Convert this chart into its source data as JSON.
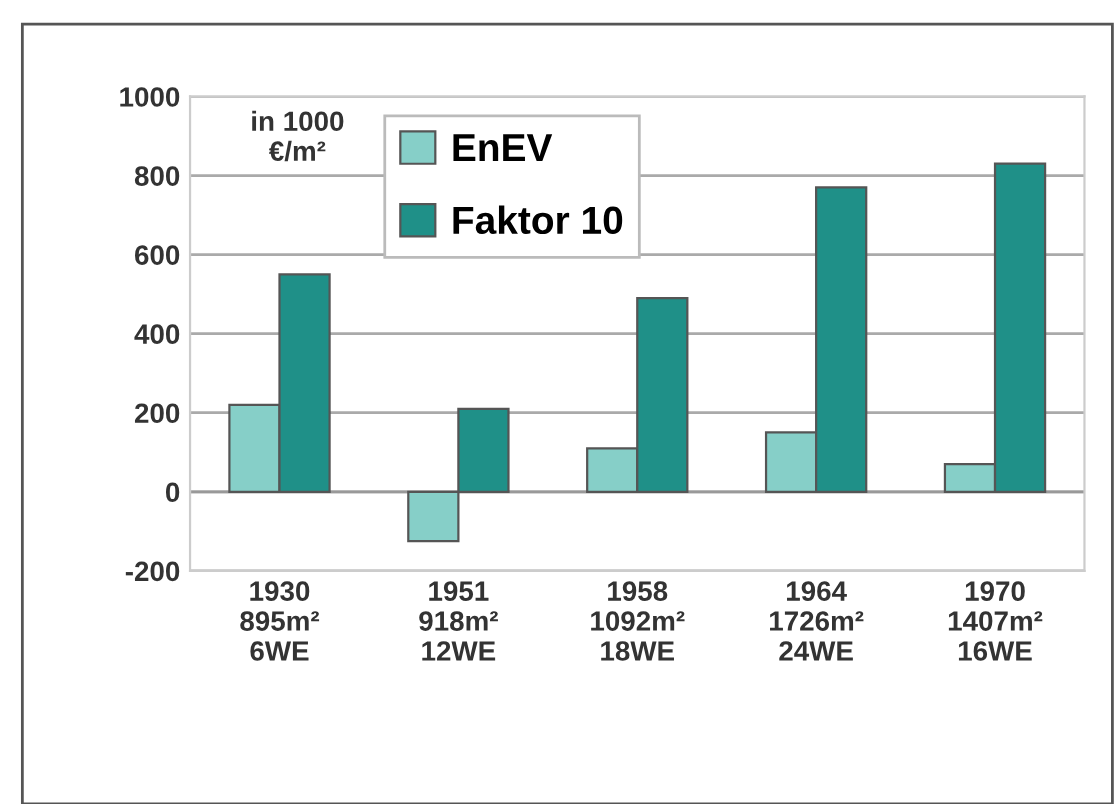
{
  "chart_data": {
    "type": "bar",
    "categories": [
      "1930\n895m²\n6WE",
      "1951\n918m²\n12WE",
      "1958\n1092m²\n18WE",
      "1964\n1726m²\n24WE",
      "1970\n1407m²\n16WE"
    ],
    "series": [
      {
        "name": "EnEV",
        "color": "#86cfc8",
        "values": [
          220,
          -125,
          110,
          150,
          70
        ]
      },
      {
        "name": "Faktor 10",
        "color": "#1f9088",
        "values": [
          550,
          210,
          490,
          770,
          830
        ]
      }
    ],
    "ylim": [
      -200,
      1000
    ],
    "yticks": [
      -200,
      0,
      200,
      400,
      600,
      800,
      1000
    ],
    "grid": "y",
    "legend": "top",
    "annotations": [
      "in 1000\n€/m²"
    ]
  }
}
